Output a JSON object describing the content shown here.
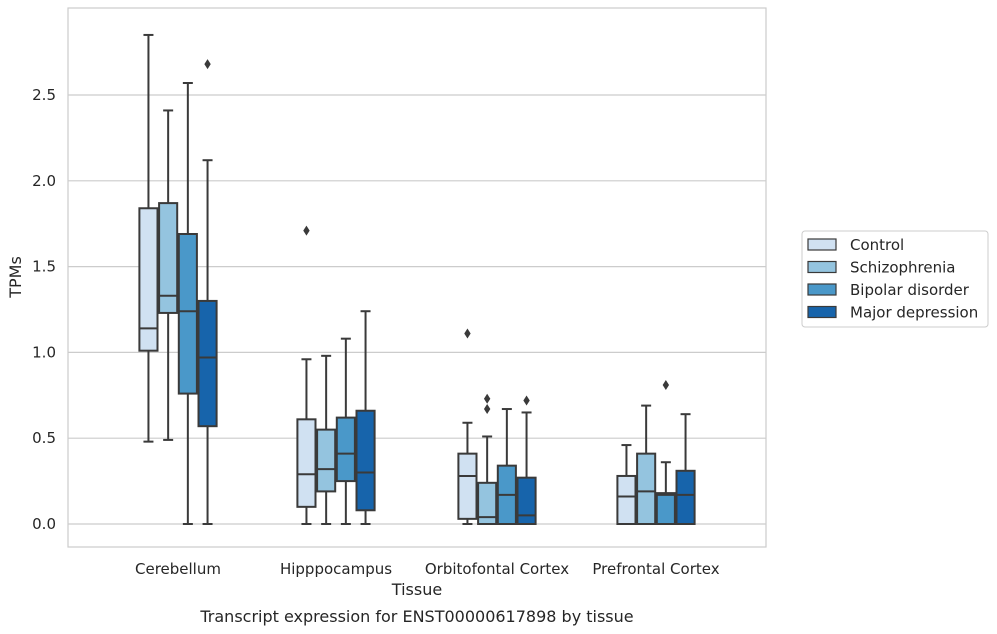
{
  "chart_data": {
    "type": "box",
    "title": "",
    "caption": "Transcript expression for ENST00000617898 by tissue",
    "xlabel": "Tissue",
    "ylabel": "TPMs",
    "ylim": [
      -0.14,
      2.9
    ],
    "yticks": [
      "0.0",
      "0.5",
      "1.0",
      "1.5",
      "2.0",
      "2.5"
    ],
    "grid": "horizontal",
    "legend_position": "right",
    "categories": [
      "Cerebellum",
      "Hipppocampus",
      "Orbitofontal Cortex",
      "Prefrontal Cortex"
    ],
    "series": [
      {
        "name": "Control",
        "color": "#d0e1f2",
        "boxes": [
          {
            "whislo": 0.48,
            "q1": 1.01,
            "med": 1.14,
            "q3": 1.84,
            "whishi": 2.85,
            "fliers": []
          },
          {
            "whislo": 0.0,
            "q1": 0.1,
            "med": 0.29,
            "q3": 0.61,
            "whishi": 0.96,
            "fliers": [
              1.71
            ]
          },
          {
            "whislo": 0.0,
            "q1": 0.03,
            "med": 0.28,
            "q3": 0.41,
            "whishi": 0.59,
            "fliers": [
              1.11
            ]
          },
          {
            "whislo": 0.0,
            "q1": 0.0,
            "med": 0.16,
            "q3": 0.28,
            "whishi": 0.46,
            "fliers": []
          }
        ]
      },
      {
        "name": "Schizophrenia",
        "color": "#94c4df",
        "boxes": [
          {
            "whislo": 0.49,
            "q1": 1.23,
            "med": 1.33,
            "q3": 1.87,
            "whishi": 2.41,
            "fliers": []
          },
          {
            "whislo": 0.0,
            "q1": 0.19,
            "med": 0.32,
            "q3": 0.55,
            "whishi": 0.98,
            "fliers": []
          },
          {
            "whislo": 0.0,
            "q1": 0.0,
            "med": 0.04,
            "q3": 0.24,
            "whishi": 0.51,
            "fliers": [
              0.67,
              0.73
            ]
          },
          {
            "whislo": 0.0,
            "q1": 0.0,
            "med": 0.19,
            "q3": 0.41,
            "whishi": 0.69,
            "fliers": []
          }
        ]
      },
      {
        "name": "Bipolar disorder",
        "color": "#4a98c9",
        "boxes": [
          {
            "whislo": 0.0,
            "q1": 0.76,
            "med": 1.24,
            "q3": 1.69,
            "whishi": 2.57,
            "fliers": []
          },
          {
            "whislo": 0.0,
            "q1": 0.25,
            "med": 0.41,
            "q3": 0.62,
            "whishi": 1.08,
            "fliers": []
          },
          {
            "whislo": 0.0,
            "q1": 0.0,
            "med": 0.17,
            "q3": 0.34,
            "whishi": 0.67,
            "fliers": []
          },
          {
            "whislo": 0.0,
            "q1": 0.0,
            "med": 0.17,
            "q3": 0.18,
            "whishi": 0.36,
            "fliers": [
              0.81
            ]
          }
        ]
      },
      {
        "name": "Major depression",
        "color": "#1764ab",
        "boxes": [
          {
            "whislo": 0.0,
            "q1": 0.57,
            "med": 0.97,
            "q3": 1.3,
            "whishi": 2.12,
            "fliers": [
              2.68
            ]
          },
          {
            "whislo": 0.0,
            "q1": 0.08,
            "med": 0.3,
            "q3": 0.66,
            "whishi": 1.24,
            "fliers": []
          },
          {
            "whislo": 0.0,
            "q1": 0.0,
            "med": 0.05,
            "q3": 0.27,
            "whishi": 0.65,
            "fliers": [
              0.72
            ]
          },
          {
            "whislo": 0.0,
            "q1": 0.0,
            "med": 0.17,
            "q3": 0.31,
            "whishi": 0.64,
            "fliers": []
          }
        ]
      }
    ]
  }
}
